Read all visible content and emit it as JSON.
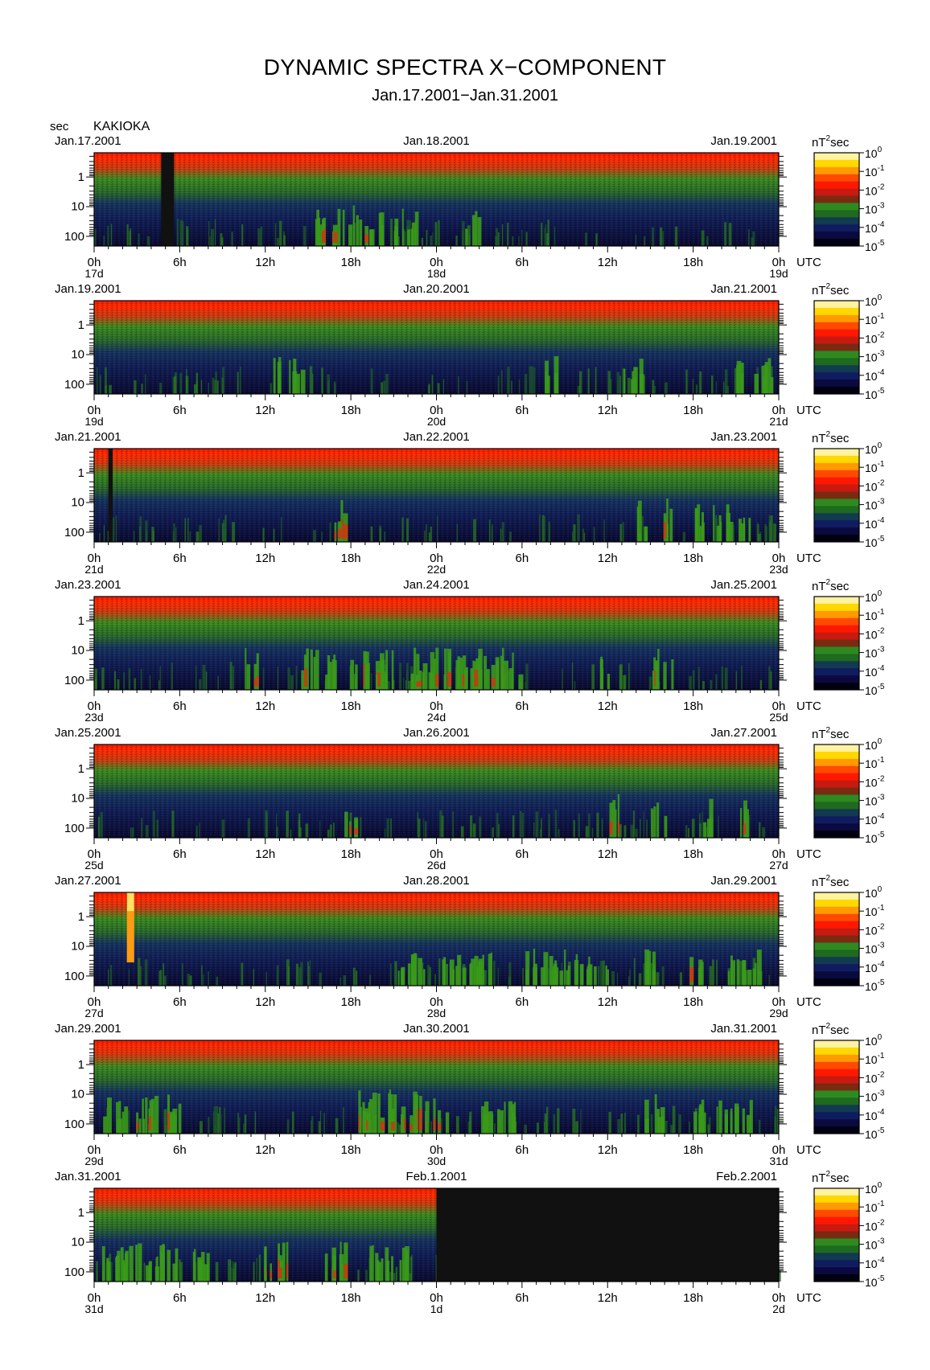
{
  "title": "DYNAMIC SPECTRA X−COMPONENT",
  "subtitle": "Jan.17.2001−Jan.31.2001",
  "ylabel": "sec",
  "station": "KAKIOKA",
  "colorbar_unit": "nT",
  "colorbar_unit_sup": "2",
  "colorbar_unit_suffix": "sec",
  "utc_label": "UTC",
  "colors": {
    "scale": [
      "#000000",
      "#101040",
      "#1a2a78",
      "#2a5a2a",
      "#2e8a1e",
      "#5a9a10",
      "#9a5a10",
      "#d02010",
      "#ff2000",
      "#ff6a00",
      "#ffb000",
      "#ffe000",
      "#fff8a0"
    ]
  },
  "chart_data": {
    "type": "heatmap",
    "x_ticks": [
      "0h",
      "6h",
      "12h",
      "18h",
      "0h",
      "6h",
      "12h",
      "18h",
      "0h"
    ],
    "y_ticks": [
      "1",
      "10",
      "100"
    ],
    "colorbar_ticks": [
      {
        "base": "10",
        "exp": "0"
      },
      {
        "base": "10",
        "exp": "-1"
      },
      {
        "base": "10",
        "exp": "-2"
      },
      {
        "base": "10",
        "exp": "-3"
      },
      {
        "base": "10",
        "exp": "-4"
      },
      {
        "base": "10",
        "exp": "-5"
      }
    ],
    "panels": [
      {
        "date_left": "Jan.17.2001",
        "date_mid": "Jan.18.2001",
        "date_right": "Jan.19.2001",
        "day_left": "17d",
        "day_mid": "18d",
        "day_right": "19d",
        "gaps": [
          [
            4.7,
            5.6
          ]
        ],
        "events": [
          [
            15.5,
            20.5,
            0.55
          ],
          [
            21,
            23,
            0.35
          ],
          [
            26,
            27,
            0.3
          ]
        ],
        "spikes": []
      },
      {
        "date_left": "Jan.19.2001",
        "date_mid": "Jan.20.2001",
        "date_right": "Jan.21.2001",
        "day_left": "19d",
        "day_mid": "20d",
        "day_right": "21d",
        "gaps": [],
        "events": [
          [
            12.5,
            14.5,
            0.35
          ],
          [
            31.5,
            32.5,
            0.45
          ],
          [
            37,
            38.5,
            0.35
          ],
          [
            45,
            47.5,
            0.3
          ]
        ],
        "spikes": []
      },
      {
        "date_left": "Jan.21.2001",
        "date_mid": "Jan.22.2001",
        "date_right": "Jan.23.2001",
        "day_left": "21d",
        "day_mid": "22d",
        "day_right": "23d",
        "gaps": [
          [
            1.0,
            1.3
          ]
        ],
        "events": [
          [
            16.5,
            17.5,
            0.7
          ],
          [
            38,
            39,
            0.6
          ],
          [
            39.5,
            40.5,
            0.7
          ],
          [
            42,
            46,
            0.4
          ]
        ],
        "spikes": []
      },
      {
        "date_left": "Jan.23.2001",
        "date_mid": "Jan.24.2001",
        "date_right": "Jan.25.2001",
        "day_left": "23d",
        "day_mid": "24d",
        "day_right": "25d",
        "gaps": [],
        "events": [
          [
            10.5,
            11.5,
            0.55
          ],
          [
            14.5,
            30,
            0.55
          ],
          [
            35,
            36,
            0.4
          ],
          [
            39,
            40.5,
            0.6
          ]
        ],
        "spikes": []
      },
      {
        "date_left": "Jan.25.2001",
        "date_mid": "Jan.26.2001",
        "date_right": "Jan.27.2001",
        "day_left": "25d",
        "day_mid": "26d",
        "day_right": "27d",
        "gaps": [],
        "events": [
          [
            17.5,
            18.5,
            0.6
          ],
          [
            36,
            37,
            0.65
          ],
          [
            39,
            40,
            0.5
          ],
          [
            42.5,
            43.5,
            0.6
          ],
          [
            45,
            45.8,
            0.6
          ]
        ],
        "spikes": []
      },
      {
        "date_left": "Jan.27.2001",
        "date_mid": "Jan.28.2001",
        "date_right": "Jan.29.2001",
        "day_left": "27d",
        "day_mid": "28d",
        "day_right": "29d",
        "gaps": [],
        "events": [
          [
            21,
            28,
            0.3
          ],
          [
            30,
            36,
            0.35
          ],
          [
            38.5,
            39.5,
            0.55
          ],
          [
            41.5,
            42.5,
            0.6
          ],
          [
            44,
            46.5,
            0.35
          ]
        ],
        "spikes": [
          [
            2.3,
            0.5
          ]
        ]
      },
      {
        "date_left": "Jan.29.2001",
        "date_mid": "Jan.30.2001",
        "date_right": "Jan.31.2001",
        "day_left": "29d",
        "day_mid": "30d",
        "day_right": "31d",
        "gaps": [],
        "events": [
          [
            0.5,
            6,
            0.55
          ],
          [
            18.5,
            25,
            0.65
          ],
          [
            27,
            30,
            0.35
          ],
          [
            38.5,
            40,
            0.5
          ],
          [
            42,
            46,
            0.3
          ]
        ],
        "spikes": []
      },
      {
        "date_left": "Jan.31.2001",
        "date_mid": "Feb.1.2001",
        "date_right": "Feb.2.2001",
        "day_left": "31d",
        "day_mid": "1d",
        "day_right": "2d",
        "gaps": [
          [
            24,
            48
          ]
        ],
        "events": [
          [
            0.5,
            8,
            0.5
          ],
          [
            11.5,
            13.5,
            0.75
          ],
          [
            16,
            17.5,
            0.7
          ],
          [
            19,
            22,
            0.4
          ]
        ],
        "spikes": []
      }
    ]
  }
}
